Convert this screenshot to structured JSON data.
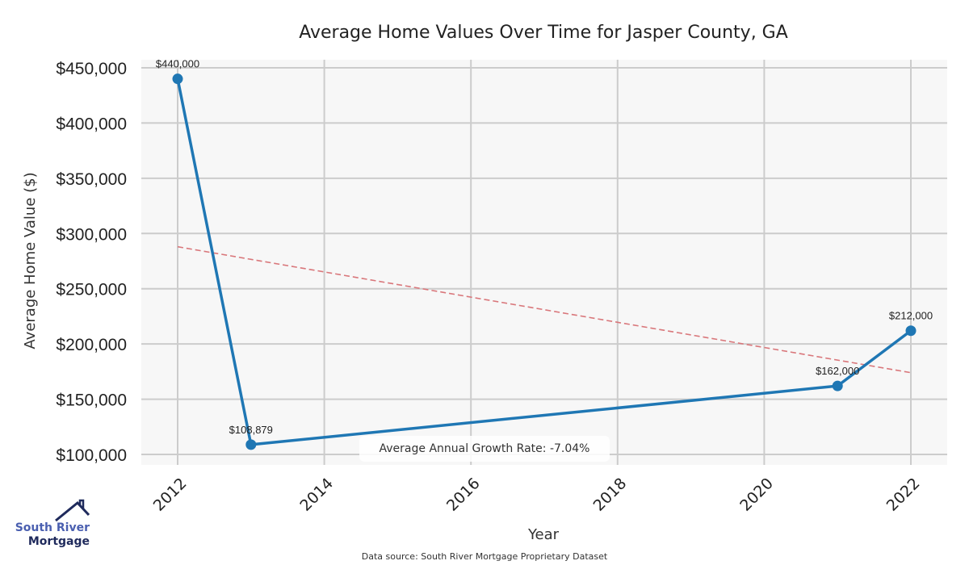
{
  "chart_data": {
    "type": "line",
    "title": "Average Home Values Over Time for Jasper County, GA",
    "xlabel": "Year",
    "ylabel": "Average Home Value ($)",
    "xlim": [
      2011.5,
      2022.5
    ],
    "ylim": [
      92500,
      457500
    ],
    "grid": true,
    "x_ticks": [
      2012,
      2014,
      2016,
      2018,
      2020,
      2022
    ],
    "x_tick_labels": [
      "2012",
      "2014",
      "2016",
      "2018",
      "2020",
      "2022"
    ],
    "y_ticks": [
      100000,
      150000,
      200000,
      250000,
      300000,
      350000,
      400000,
      450000
    ],
    "y_tick_labels": [
      "$100,000",
      "$150,000",
      "$200,000",
      "$250,000",
      "$300,000",
      "$350,000",
      "$400,000",
      "$450,000"
    ],
    "series": [
      {
        "name": "Average Home Value",
        "color": "#1f77b4",
        "x": [
          2012,
          2013,
          2021,
          2022
        ],
        "values": [
          440000,
          108879,
          162000,
          212000
        ],
        "labels": [
          "$440,000",
          "$108,879",
          "$162,000",
          "$212,000"
        ]
      },
      {
        "name": "Trend",
        "color": "#d9777b",
        "style": "dashed",
        "x": [
          2012,
          2022
        ],
        "values": [
          288000,
          174000
        ]
      }
    ],
    "annotation": "Average Annual Growth Rate: -7.04%",
    "source": "Data source: South River Mortgage Proprietary Dataset"
  },
  "logo": {
    "line1": "South River",
    "line2": "Mortgage"
  },
  "colors": {
    "plot_bg": "#f7f7f7",
    "grid": "#cccccc",
    "line": "#1f77b4",
    "trend": "#d9777b"
  }
}
